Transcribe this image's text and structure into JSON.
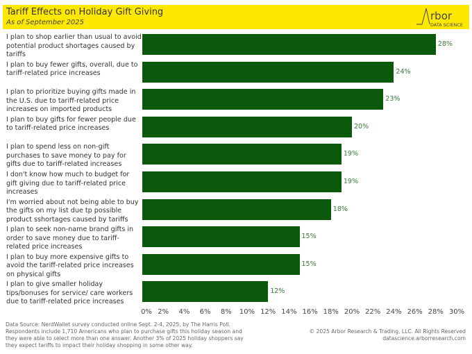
{
  "header": {
    "title": "Tariff Effects on Holiday Gift Giving",
    "subtitle": "As of September 2025",
    "logo_text": "Arbor DATA SCIENCE"
  },
  "colors": {
    "header_bg": "#ffe800",
    "bar": "#0b5a0b",
    "value_label": "#3a7a3a"
  },
  "chart_data": {
    "type": "bar",
    "orientation": "horizontal",
    "categories": [
      "I plan to shop earlier than usual to avoid potential product shortages caused by tariffs",
      "I plan to buy fewer gifts, overall, due to tariff-related price increases",
      "I plan to prioritize buying gifts made in the U.S. due to tariff-related price increases on imported products",
      "I plan to buy gifts for fewer people due to tariff-related price increases",
      "I plan to spend less on non-gift purchases to save money to pay for gifts due to tariff-related increases",
      "I don't know how much to budget for gift giving due to tariff-related price increases",
      "I'm worried about not being able to buy the gifts on my list due tp possible product sshortages caused by tariffs",
      "I plan to seek non-name brand gifts in order to save money due to tariff-related price increases",
      "I plan to buy more expensive gifts to avoid the tariff-related price increases on physical gifts",
      "I plan to give smaller holiday tips/bonuses for service/ care workers due to tariff-related price increases"
    ],
    "values": [
      28,
      24,
      23,
      20,
      19,
      19,
      18,
      15,
      15,
      12
    ],
    "value_labels": [
      "28%",
      "24%",
      "23%",
      "20%",
      "19%",
      "19%",
      "18%",
      "15%",
      "15%",
      "12%"
    ],
    "xlim": [
      0,
      30
    ],
    "ticks": [
      "0%",
      "2%",
      "4%",
      "6%",
      "8%",
      "10%",
      "12%",
      "14%",
      "16%",
      "18%",
      "20%",
      "22%",
      "24%",
      "26%",
      "28%",
      "30%"
    ],
    "grid": false
  },
  "footer": {
    "source": "Data Source: NerdWallet survey conducted online Sept. 2-4, 2025, by The Harris Poll. Respondents include 1,710 Americans who plan to purchase gifts this holiday season and they were able to select more than one answer.  Another 3% of 2025 holiday shoppers say they expect tariffs to impact their holiday shopping in some other way.",
    "copyright": "© 2025 Arbor Research & Trading, LLC. All Rights Reserved",
    "website": "datascience.arborresearch.com"
  }
}
